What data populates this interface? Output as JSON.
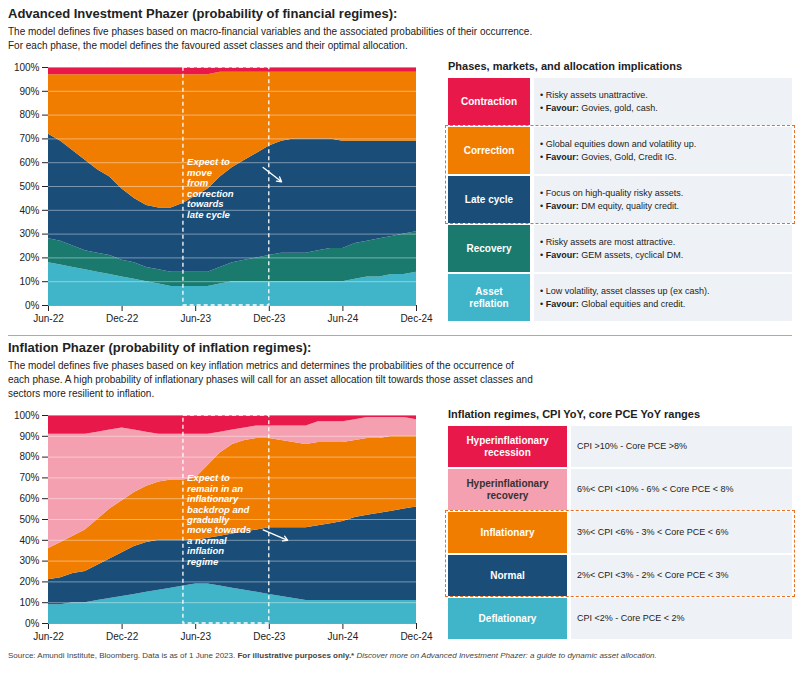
{
  "chart_data": [
    {
      "type": "area",
      "stacked": true,
      "title": "Advanced Investment Phazer (probability of financial regimes):",
      "subtitle": "The model defines five phases based on macro-financial variables and the associated probabilities of their occurrence.\nFor each phase, the model defines the favoured asset classes and their optimal allocation.",
      "categories": [
        "Jun-22",
        null,
        null,
        null,
        null,
        null,
        "Dec-22",
        null,
        null,
        null,
        null,
        null,
        "Jun-23",
        null,
        null,
        null,
        null,
        null,
        "Dec-23",
        null,
        null,
        null,
        null,
        null,
        "Jun-24",
        null,
        null,
        null,
        null,
        null,
        "Dec-24"
      ],
      "ylim": [
        0,
        100
      ],
      "yticks": [
        {
          "value": 0,
          "label": "0%"
        },
        {
          "value": 10,
          "label": "10%"
        },
        {
          "value": 20,
          "label": "20%"
        },
        {
          "value": 30,
          "label": "30%"
        },
        {
          "value": 40,
          "label": "40%"
        },
        {
          "value": 50,
          "label": "50%"
        },
        {
          "value": 60,
          "label": "60%"
        },
        {
          "value": 70,
          "label": "70%"
        },
        {
          "value": 80,
          "label": "80%"
        },
        {
          "value": 90,
          "label": "90%"
        },
        {
          "value": 100,
          "label": "100%"
        }
      ],
      "grid": true,
      "legend": "right",
      "legend_title": "Phases, markets, and allocation implications",
      "legend_emphasis": "Favour:",
      "series": [
        {
          "name": "Asset\nreflation",
          "color": "#40b4c8",
          "values": [
            18,
            17,
            16,
            15,
            14,
            13,
            12,
            11,
            10,
            9,
            8,
            8,
            8,
            8,
            9,
            10,
            10,
            10,
            10,
            10,
            10,
            10,
            10,
            10,
            10,
            11,
            12,
            12,
            13,
            13,
            14
          ],
          "notes": [
            "• Low volatility, asset classes up (ex cash).",
            "• Favour: Global equities and credit."
          ]
        },
        {
          "name": "Recovery",
          "color": "#1a7a6e",
          "values": [
            10,
            10,
            9,
            8,
            8,
            8,
            7,
            7,
            6,
            6,
            6,
            6,
            6,
            6,
            7,
            8,
            9,
            10,
            11,
            12,
            12,
            12,
            13,
            14,
            14,
            15,
            15,
            16,
            16,
            17,
            17
          ],
          "notes": [
            "• Risky assets are most attractive.",
            "• Favour: GEM assets, cyclical DM."
          ]
        },
        {
          "name": "Late cycle",
          "color": "#1a4e79",
          "values": [
            44,
            42,
            40,
            38,
            35,
            33,
            30,
            27,
            26,
            26,
            27,
            29,
            32,
            35,
            38,
            40,
            42,
            44,
            46,
            47,
            48,
            48,
            47,
            46,
            45,
            43,
            42,
            41,
            40,
            39,
            38
          ],
          "notes": [
            "• Focus on high-quality risky assets.",
            "• Favour: DM equity, quality credit."
          ]
        },
        {
          "name": "Correction",
          "color": "#f07d00",
          "values": [
            25,
            28,
            32,
            36,
            40,
            43,
            48,
            52,
            55,
            56,
            56,
            54,
            51,
            48,
            44,
            40,
            37,
            34,
            31,
            29,
            28,
            28,
            28,
            28,
            29,
            29,
            29,
            29,
            29,
            29,
            29
          ],
          "notes": [
            "• Global equities down and volatility up.",
            "• Favour: Govies, Gold, Credit IG."
          ]
        },
        {
          "name": "Contraction",
          "color": "#e8184a",
          "values": [
            3,
            3,
            3,
            3,
            3,
            3,
            3,
            3,
            3,
            3,
            3,
            3,
            3,
            3,
            2,
            2,
            2,
            2,
            2,
            2,
            2,
            2,
            2,
            2,
            2,
            2,
            2,
            2,
            2,
            2,
            2
          ],
          "notes": [
            "• Risky assets unattractive.",
            "• Favour: Govies, gold, cash."
          ]
        }
      ],
      "annotations": [
        {
          "text": "Expect to\nmove\nfrom\ncorrection\ntowards\nlate cycle",
          "x_range": [
            11,
            18
          ],
          "text_at": [
            11.3,
            62
          ],
          "arrow": [
            [
              17.5,
              58
            ],
            [
              19,
              52
            ]
          ],
          "highlight": [
            "Correction",
            "Late cycle"
          ]
        }
      ]
    },
    {
      "type": "area",
      "stacked": true,
      "title": "Inflation Phazer (probability of inflation regimes):",
      "subtitle": "The model defines five phases based on key inflation metrics and determines the probabilities of the occurrence of\neach phase. A high probability of inflationary phases will call for an asset allocation tilt towards those asset classes and\nsectors more resilient to inflation.",
      "categories": [
        "Jun-22",
        null,
        null,
        null,
        null,
        null,
        "Dec-22",
        null,
        null,
        null,
        null,
        null,
        "Jun-23",
        null,
        null,
        null,
        null,
        null,
        "Dec-23",
        null,
        null,
        null,
        null,
        null,
        "Jun-24",
        null,
        null,
        null,
        null,
        null,
        "Dec-24"
      ],
      "ylim": [
        0,
        100
      ],
      "yticks": [
        {
          "value": 0,
          "label": "0%"
        },
        {
          "value": 10,
          "label": "10%"
        },
        {
          "value": 20,
          "label": "20%"
        },
        {
          "value": 30,
          "label": "30%"
        },
        {
          "value": 40,
          "label": "40%"
        },
        {
          "value": 50,
          "label": "50%"
        },
        {
          "value": 60,
          "label": "60%"
        },
        {
          "value": 70,
          "label": "70%"
        },
        {
          "value": 80,
          "label": "80%"
        },
        {
          "value": 90,
          "label": "90%"
        },
        {
          "value": 100,
          "label": "100%"
        }
      ],
      "grid": true,
      "legend": "right",
      "legend_title": "Inflation regimes, CPI YoY, core PCE YoY ranges",
      "series": [
        {
          "name": "Deflationary",
          "color": "#40b4c8",
          "values": [
            9,
            9,
            10,
            10,
            11,
            12,
            13,
            14,
            15,
            16,
            17,
            18,
            19,
            19,
            18,
            17,
            16,
            15,
            14,
            13,
            12,
            11,
            11,
            11,
            11,
            11,
            11,
            11,
            11,
            11,
            11
          ],
          "notes": [
            "CPI <2%  -  Core PCE < 2%"
          ]
        },
        {
          "name": "Normal",
          "color": "#1a4e79",
          "values": [
            12,
            13,
            14,
            15,
            17,
            19,
            21,
            23,
            24,
            24,
            23,
            22,
            21,
            22,
            24,
            26,
            28,
            30,
            32,
            33,
            34,
            35,
            36,
            37,
            38,
            40,
            41,
            42,
            43,
            44,
            45
          ],
          "notes": [
            "2%< CPI <3%  -  2% < Core PCE < 3%"
          ]
        },
        {
          "name": "Inflationary",
          "color": "#f07d00",
          "values": [
            15,
            17,
            18,
            20,
            22,
            24,
            25,
            26,
            27,
            28,
            29,
            29,
            30,
            35,
            40,
            43,
            44,
            44,
            43,
            42,
            41,
            40,
            40,
            39,
            38,
            37,
            37,
            36,
            36,
            35,
            34
          ],
          "notes": [
            "3%< CPI <6%  -  3% < Core PCE < 6%"
          ]
        },
        {
          "name": "Hyperinflationary\nrecovery",
          "color": "#f5a0b0",
          "values": [
            55,
            52,
            49,
            46,
            42,
            38,
            35,
            30,
            26,
            23,
            22,
            22,
            21,
            15,
            10,
            7,
            6,
            6,
            6,
            7,
            8,
            9,
            10,
            10,
            10,
            10,
            10,
            10,
            9,
            9,
            8
          ],
          "notes": [
            "6%< CPI <10% - 6% < Core PCE < 8%"
          ]
        },
        {
          "name": "Hyperinflationary\nrecession",
          "color": "#e8184a",
          "values": [
            9,
            9,
            9,
            9,
            8,
            7,
            6,
            7,
            8,
            9,
            9,
            9,
            9,
            9,
            8,
            7,
            6,
            5,
            5,
            5,
            5,
            5,
            3,
            3,
            3,
            2,
            1,
            1,
            1,
            1,
            2
          ],
          "notes": [
            "CPI >10%  -  Core PCE >8%"
          ]
        }
      ],
      "annotations": [
        {
          "text": "Expect to\nremain in an\ninflationary\nbackdrop and\ngradually\nmove towards\na normal\ninflation\nregime",
          "x_range": [
            11,
            18
          ],
          "text_at": [
            11.3,
            72
          ],
          "arrow": [
            [
              17.5,
              45
            ],
            [
              19.5,
              40
            ]
          ],
          "highlight": [
            "Inflationary",
            "Normal"
          ]
        }
      ],
      "caption": [
        "Source: Amundi Institute, Bloomberg. Data is as of 1 June 2023. ",
        "For illustrative purposes only.*",
        " Discover more on Advanced Investment Phazer: a guide to dynamic asset allocation."
      ]
    }
  ]
}
